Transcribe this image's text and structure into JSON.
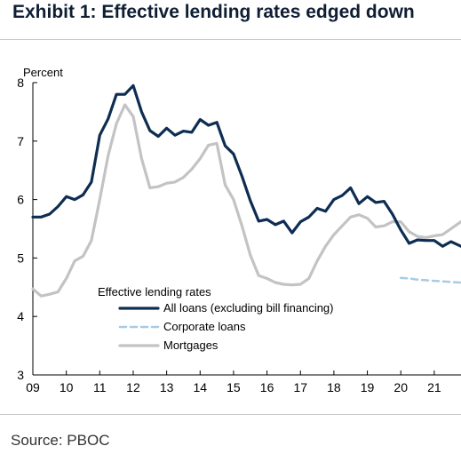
{
  "title": "Exhibit 1: Effective lending rates edged down",
  "source": "Source: PBOC",
  "chart_data": {
    "type": "line",
    "ylabel": "Percent",
    "ylim": [
      3,
      8
    ],
    "yticks": [
      3,
      4,
      5,
      6,
      7,
      8
    ],
    "xlim": [
      2009.0,
      2021.8
    ],
    "xticks": [
      {
        "v": 2009,
        "label": "09"
      },
      {
        "v": 2010,
        "label": "10"
      },
      {
        "v": 2011,
        "label": "11"
      },
      {
        "v": 2012,
        "label": "12"
      },
      {
        "v": 2013,
        "label": "13"
      },
      {
        "v": 2014,
        "label": "14"
      },
      {
        "v": 2015,
        "label": "15"
      },
      {
        "v": 2016,
        "label": "16"
      },
      {
        "v": 2017,
        "label": "17"
      },
      {
        "v": 2018,
        "label": "18"
      },
      {
        "v": 2019,
        "label": "19"
      },
      {
        "v": 2020,
        "label": "20"
      },
      {
        "v": 2021,
        "label": "21"
      }
    ],
    "legend": {
      "title": "Effective lending rates",
      "position": "bottom-left"
    },
    "series": [
      {
        "name": "Mortgages",
        "color": "#c3c3c3",
        "dash": "solid",
        "points": [
          [
            2009.0,
            4.47
          ],
          [
            2009.25,
            4.35
          ],
          [
            2009.5,
            4.38
          ],
          [
            2009.75,
            4.42
          ],
          [
            2010.0,
            4.65
          ],
          [
            2010.25,
            4.95
          ],
          [
            2010.5,
            5.03
          ],
          [
            2010.75,
            5.3
          ],
          [
            2011.0,
            6.0
          ],
          [
            2011.25,
            6.75
          ],
          [
            2011.5,
            7.3
          ],
          [
            2011.75,
            7.62
          ],
          [
            2012.0,
            7.42
          ],
          [
            2012.25,
            6.7
          ],
          [
            2012.5,
            6.2
          ],
          [
            2012.75,
            6.22
          ],
          [
            2013.0,
            6.28
          ],
          [
            2013.25,
            6.3
          ],
          [
            2013.5,
            6.38
          ],
          [
            2013.75,
            6.52
          ],
          [
            2014.0,
            6.7
          ],
          [
            2014.25,
            6.93
          ],
          [
            2014.5,
            6.96
          ],
          [
            2014.75,
            6.25
          ],
          [
            2015.0,
            6.0
          ],
          [
            2015.25,
            5.55
          ],
          [
            2015.5,
            5.05
          ],
          [
            2015.75,
            4.7
          ],
          [
            2016.0,
            4.65
          ],
          [
            2016.25,
            4.58
          ],
          [
            2016.5,
            4.55
          ],
          [
            2016.75,
            4.54
          ],
          [
            2017.0,
            4.55
          ],
          [
            2017.25,
            4.65
          ],
          [
            2017.5,
            4.95
          ],
          [
            2017.75,
            5.2
          ],
          [
            2018.0,
            5.4
          ],
          [
            2018.25,
            5.55
          ],
          [
            2018.5,
            5.7
          ],
          [
            2018.75,
            5.74
          ],
          [
            2019.0,
            5.68
          ],
          [
            2019.25,
            5.53
          ],
          [
            2019.5,
            5.55
          ],
          [
            2019.75,
            5.62
          ],
          [
            2020.0,
            5.62
          ],
          [
            2020.25,
            5.45
          ],
          [
            2020.5,
            5.37
          ],
          [
            2020.75,
            5.35
          ],
          [
            2021.0,
            5.38
          ],
          [
            2021.25,
            5.4
          ],
          [
            2021.5,
            5.5
          ],
          [
            2021.8,
            5.62
          ]
        ]
      },
      {
        "name": "Corporate loans",
        "color": "#a8cbe6",
        "dash": "dashed",
        "points": [
          [
            2020.0,
            4.66
          ],
          [
            2020.25,
            4.65
          ],
          [
            2020.5,
            4.63
          ],
          [
            2020.75,
            4.62
          ],
          [
            2021.0,
            4.61
          ],
          [
            2021.25,
            4.6
          ],
          [
            2021.5,
            4.59
          ],
          [
            2021.8,
            4.58
          ]
        ]
      },
      {
        "name": "All loans (excluding bill financing)",
        "color": "#0e2d52",
        "dash": "solid",
        "points": [
          [
            2009.0,
            5.7
          ],
          [
            2009.25,
            5.7
          ],
          [
            2009.5,
            5.75
          ],
          [
            2009.75,
            5.88
          ],
          [
            2010.0,
            6.05
          ],
          [
            2010.25,
            6.0
          ],
          [
            2010.5,
            6.08
          ],
          [
            2010.75,
            6.3
          ],
          [
            2011.0,
            7.1
          ],
          [
            2011.25,
            7.38
          ],
          [
            2011.5,
            7.8
          ],
          [
            2011.75,
            7.8
          ],
          [
            2012.0,
            7.95
          ],
          [
            2012.25,
            7.5
          ],
          [
            2012.5,
            7.18
          ],
          [
            2012.75,
            7.08
          ],
          [
            2013.0,
            7.22
          ],
          [
            2013.25,
            7.1
          ],
          [
            2013.5,
            7.17
          ],
          [
            2013.75,
            7.15
          ],
          [
            2014.0,
            7.37
          ],
          [
            2014.25,
            7.27
          ],
          [
            2014.5,
            7.32
          ],
          [
            2014.75,
            6.92
          ],
          [
            2015.0,
            6.78
          ],
          [
            2015.25,
            6.4
          ],
          [
            2015.5,
            5.98
          ],
          [
            2015.75,
            5.63
          ],
          [
            2016.0,
            5.66
          ],
          [
            2016.25,
            5.57
          ],
          [
            2016.5,
            5.63
          ],
          [
            2016.75,
            5.43
          ],
          [
            2017.0,
            5.62
          ],
          [
            2017.25,
            5.7
          ],
          [
            2017.5,
            5.85
          ],
          [
            2017.75,
            5.8
          ],
          [
            2018.0,
            6.0
          ],
          [
            2018.25,
            6.07
          ],
          [
            2018.5,
            6.2
          ],
          [
            2018.75,
            5.93
          ],
          [
            2019.0,
            6.05
          ],
          [
            2019.25,
            5.95
          ],
          [
            2019.5,
            5.97
          ],
          [
            2019.75,
            5.75
          ],
          [
            2020.0,
            5.48
          ],
          [
            2020.25,
            5.25
          ],
          [
            2020.5,
            5.31
          ],
          [
            2020.75,
            5.3
          ],
          [
            2021.0,
            5.3
          ],
          [
            2021.25,
            5.2
          ],
          [
            2021.5,
            5.28
          ],
          [
            2021.8,
            5.2
          ]
        ]
      }
    ]
  }
}
